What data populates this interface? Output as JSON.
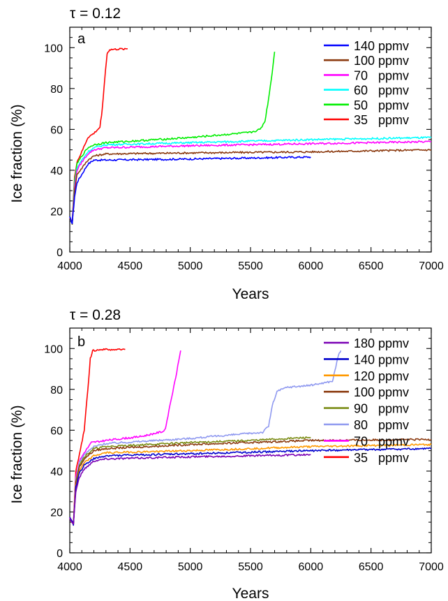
{
  "chart_data": [
    {
      "type": "line",
      "title": "τ = 0.12",
      "panel_label": "a",
      "xlabel": "Years",
      "ylabel": "Ice fraction (%)",
      "xlim": [
        4000,
        7000
      ],
      "ylim": [
        0,
        110
      ],
      "xticks": [
        "4000",
        "4500",
        "5000",
        "5500",
        "6000",
        "6500",
        "7000"
      ],
      "yticks": [
        "0",
        "20",
        "40",
        "60",
        "80",
        "100"
      ],
      "grid": false,
      "legend_position": "top-right",
      "series": [
        {
          "name": "140 ppmv",
          "value": "140",
          "unit": "ppmv",
          "color": "#0000ff",
          "points": [
            [
              4000,
              17
            ],
            [
              4020,
              14
            ],
            [
              4040,
              27
            ],
            [
              4060,
              34
            ],
            [
              4100,
              38
            ],
            [
              4150,
              43
            ],
            [
              4200,
              45
            ],
            [
              4300,
              45
            ],
            [
              5000,
              45.5
            ],
            [
              5500,
              46
            ],
            [
              6000,
              46.5
            ]
          ]
        },
        {
          "name": "100 ppmv",
          "value": "100",
          "unit": "ppmv",
          "color": "#8b3a0f",
          "points": [
            [
              4000,
              17
            ],
            [
              4020,
              14
            ],
            [
              4040,
              30
            ],
            [
              4060,
              38
            ],
            [
              4100,
              41
            ],
            [
              4150,
              45
            ],
            [
              4200,
              47
            ],
            [
              4300,
              48
            ],
            [
              5000,
              48.5
            ],
            [
              6000,
              49
            ],
            [
              7000,
              50
            ]
          ]
        },
        {
          "name": "70   ppmv",
          "value": "70",
          "unit": "ppmv",
          "color": "#ff00ff",
          "points": [
            [
              4000,
              17
            ],
            [
              4020,
              14
            ],
            [
              4040,
              32
            ],
            [
              4060,
              40
            ],
            [
              4100,
              44
            ],
            [
              4150,
              48
            ],
            [
              4200,
              50
            ],
            [
              4300,
              51
            ],
            [
              5000,
              52
            ],
            [
              6000,
              53
            ],
            [
              7000,
              54
            ]
          ]
        },
        {
          "name": "60   ppmv",
          "value": "60",
          "unit": "ppmv",
          "color": "#00ffff",
          "points": [
            [
              4000,
              17
            ],
            [
              4020,
              14
            ],
            [
              4040,
              33
            ],
            [
              4060,
              41
            ],
            [
              4100,
              45
            ],
            [
              4150,
              49
            ],
            [
              4200,
              51
            ],
            [
              4300,
              52.5
            ],
            [
              5000,
              53.5
            ],
            [
              6000,
              55
            ],
            [
              7000,
              56
            ]
          ]
        },
        {
          "name": "50   ppmv",
          "value": "50",
          "unit": "ppmv",
          "color": "#00ee00",
          "points": [
            [
              4000,
              17
            ],
            [
              4020,
              14
            ],
            [
              4040,
              35
            ],
            [
              4060,
              43
            ],
            [
              4100,
              47
            ],
            [
              4150,
              51
            ],
            [
              4200,
              52.5
            ],
            [
              4300,
              53.5
            ],
            [
              5000,
              56
            ],
            [
              5500,
              58.5
            ],
            [
              5580,
              60
            ],
            [
              5620,
              64
            ],
            [
              5650,
              75
            ],
            [
              5680,
              88
            ],
            [
              5700,
              98
            ]
          ]
        },
        {
          "name": "35   ppmv",
          "value": "35",
          "unit": "ppmv",
          "color": "#ff0000",
          "points": [
            [
              4000,
              17
            ],
            [
              4020,
              14
            ],
            [
              4040,
              37
            ],
            [
              4060,
              44
            ],
            [
              4100,
              49
            ],
            [
              4150,
              56
            ],
            [
              4200,
              58
            ],
            [
              4250,
              61
            ],
            [
              4270,
              70
            ],
            [
              4290,
              85
            ],
            [
              4310,
              97
            ],
            [
              4330,
              99
            ],
            [
              4480,
              99.5
            ]
          ]
        }
      ]
    },
    {
      "type": "line",
      "title": "τ = 0.28",
      "panel_label": "b",
      "xlabel": "Years",
      "ylabel": "Ice fraction (%)",
      "xlim": [
        4000,
        7000
      ],
      "ylim": [
        0,
        110
      ],
      "xticks": [
        "4000",
        "4500",
        "5000",
        "5500",
        "6000",
        "6500",
        "7000"
      ],
      "yticks": [
        "0",
        "20",
        "40",
        "60",
        "80",
        "100"
      ],
      "grid": false,
      "legend_position": "top-right",
      "series": [
        {
          "name": "180 ppmv",
          "value": "180",
          "unit": "ppmv",
          "color": "#7a00b4",
          "points": [
            [
              4000,
              17
            ],
            [
              4030,
              14
            ],
            [
              4050,
              30
            ],
            [
              4080,
              37
            ],
            [
              4120,
              41
            ],
            [
              4200,
              45
            ],
            [
              4300,
              46
            ],
            [
              5000,
              47
            ],
            [
              6000,
              48
            ]
          ]
        },
        {
          "name": "140 ppmv",
          "value": "140",
          "unit": "ppmv",
          "color": "#0000cd",
          "points": [
            [
              4000,
              17
            ],
            [
              4030,
              14
            ],
            [
              4050,
              32
            ],
            [
              4080,
              39
            ],
            [
              4120,
              43
            ],
            [
              4200,
              46
            ],
            [
              4300,
              47.5
            ],
            [
              5000,
              48.5
            ],
            [
              6000,
              50
            ],
            [
              7000,
              51
            ]
          ]
        },
        {
          "name": "120 ppmv",
          "value": "120",
          "unit": "ppmv",
          "color": "#ff9900",
          "points": [
            [
              4000,
              17
            ],
            [
              4030,
              14
            ],
            [
              4050,
              33
            ],
            [
              4080,
              40
            ],
            [
              4120,
              44
            ],
            [
              4200,
              47.5
            ],
            [
              4300,
              49
            ],
            [
              5000,
              50
            ],
            [
              6000,
              52
            ],
            [
              7000,
              53
            ]
          ]
        },
        {
          "name": "100 ppmv",
          "value": "100",
          "unit": "ppmv",
          "color": "#8b3a0f",
          "points": [
            [
              4000,
              17
            ],
            [
              4030,
              14
            ],
            [
              4050,
              34
            ],
            [
              4080,
              42
            ],
            [
              4120,
              46
            ],
            [
              4200,
              50
            ],
            [
              4300,
              51
            ],
            [
              5000,
              53
            ],
            [
              6000,
              55
            ],
            [
              7000,
              55.5
            ]
          ]
        },
        {
          "name": "90   ppmv",
          "value": "90",
          "unit": "ppmv",
          "color": "#7a8c14",
          "points": [
            [
              4000,
              17
            ],
            [
              4030,
              14
            ],
            [
              4050,
              35
            ],
            [
              4080,
              43
            ],
            [
              4120,
              47
            ],
            [
              4200,
              51
            ],
            [
              4300,
              52
            ],
            [
              5000,
              54
            ],
            [
              5500,
              55
            ],
            [
              6000,
              56.5
            ]
          ]
        },
        {
          "name": "80   ppmv",
          "value": "80",
          "unit": "ppmv",
          "color": "#8f99f0",
          "points": [
            [
              4000,
              17
            ],
            [
              4030,
              14
            ],
            [
              4050,
              36
            ],
            [
              4080,
              44
            ],
            [
              4120,
              48
            ],
            [
              4200,
              52
            ],
            [
              4300,
              53.5
            ],
            [
              5000,
              56
            ],
            [
              5600,
              59
            ],
            [
              5650,
              62
            ],
            [
              5680,
              72
            ],
            [
              5720,
              79
            ],
            [
              5800,
              81
            ],
            [
              6000,
              82
            ],
            [
              6180,
              84
            ],
            [
              6200,
              89
            ],
            [
              6230,
              97
            ],
            [
              6250,
              99
            ]
          ]
        },
        {
          "name": "70   ppmv",
          "value": "70",
          "unit": "ppmv",
          "color": "#ff00ff",
          "points": [
            [
              4000,
              17
            ],
            [
              4030,
              14
            ],
            [
              4050,
              37
            ],
            [
              4080,
              45
            ],
            [
              4120,
              49
            ],
            [
              4180,
              54
            ],
            [
              4300,
              55
            ],
            [
              4600,
              57
            ],
            [
              4780,
              59.5
            ],
            [
              4800,
              62
            ],
            [
              4830,
              72
            ],
            [
              4880,
              86
            ],
            [
              4920,
              99
            ]
          ]
        },
        {
          "name": "35   ppmv",
          "value": "35",
          "unit": "ppmv",
          "color": "#ff0000",
          "points": [
            [
              4000,
              17
            ],
            [
              4030,
              14
            ],
            [
              4050,
              40
            ],
            [
              4080,
              48
            ],
            [
              4120,
              60
            ],
            [
              4150,
              80
            ],
            [
              4170,
              95
            ],
            [
              4190,
              99
            ],
            [
              4250,
              99.5
            ],
            [
              4460,
              99.5
            ]
          ]
        }
      ]
    }
  ]
}
